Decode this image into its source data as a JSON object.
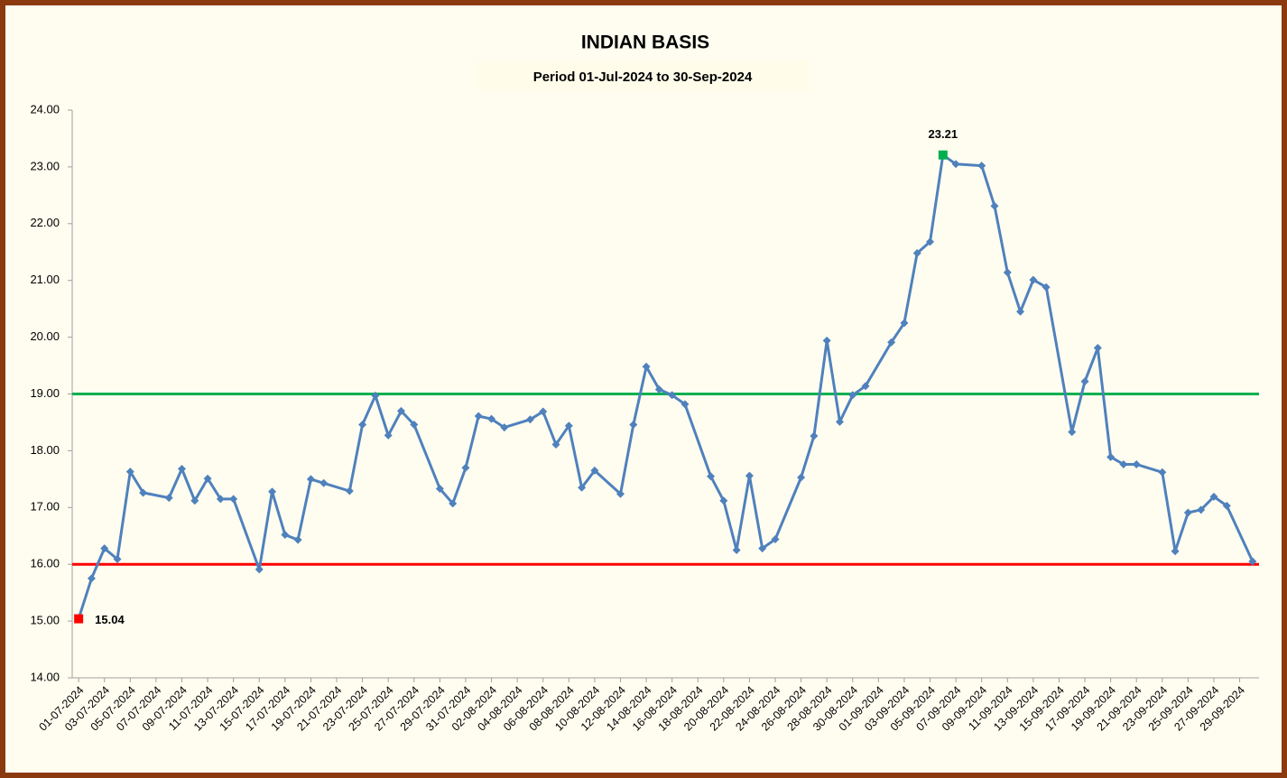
{
  "chart_data": {
    "type": "line",
    "title": "INDIAN BASIS",
    "subtitle": "Period 01-Jul-2024 to 30-Sep-2024",
    "x": [
      "01-07-2024",
      "02-07-2024",
      "03-07-2024",
      "04-07-2024",
      "05-07-2024",
      "06-07-2024",
      "08-07-2024",
      "09-07-2024",
      "10-07-2024",
      "11-07-2024",
      "12-07-2024",
      "13-07-2024",
      "15-07-2024",
      "16-07-2024",
      "17-07-2024",
      "18-07-2024",
      "19-07-2024",
      "20-07-2024",
      "22-07-2024",
      "23-07-2024",
      "24-07-2024",
      "25-07-2024",
      "26-07-2024",
      "27-07-2024",
      "29-07-2024",
      "30-07-2024",
      "31-07-2024",
      "01-08-2024",
      "02-08-2024",
      "03-08-2024",
      "05-08-2024",
      "06-08-2024",
      "07-08-2024",
      "08-08-2024",
      "09-08-2024",
      "10-08-2024",
      "12-08-2024",
      "13-08-2024",
      "14-08-2024",
      "15-08-2024",
      "16-08-2024",
      "17-08-2024",
      "19-08-2024",
      "20-08-2024",
      "21-08-2024",
      "22-08-2024",
      "23-08-2024",
      "24-08-2024",
      "26-08-2024",
      "27-08-2024",
      "28-08-2024",
      "29-08-2024",
      "30-08-2024",
      "31-08-2024",
      "02-09-2024",
      "03-09-2024",
      "04-09-2024",
      "05-09-2024",
      "06-09-2024",
      "07-09-2024",
      "09-09-2024",
      "10-09-2024",
      "11-09-2024",
      "12-09-2024",
      "13-09-2024",
      "14-09-2024",
      "16-09-2024",
      "17-09-2024",
      "18-09-2024",
      "19-09-2024",
      "20-09-2024",
      "21-09-2024",
      "23-09-2024",
      "24-09-2024",
      "25-09-2024",
      "26-09-2024",
      "27-09-2024",
      "28-09-2024",
      "30-09-2024"
    ],
    "values": [
      15.04,
      15.75,
      16.28,
      16.09,
      17.63,
      17.26,
      17.17,
      17.68,
      17.12,
      17.51,
      17.15,
      17.15,
      15.91,
      17.28,
      16.52,
      16.43,
      17.5,
      17.43,
      17.29,
      18.46,
      18.97,
      18.27,
      18.7,
      18.46,
      17.33,
      17.07,
      17.7,
      18.61,
      18.56,
      18.41,
      18.55,
      18.69,
      18.11,
      18.44,
      17.35,
      17.65,
      17.24,
      18.46,
      19.48,
      19.08,
      18.98,
      18.82,
      17.55,
      17.12,
      16.25,
      17.56,
      16.28,
      16.44,
      17.53,
      18.26,
      19.94,
      18.51,
      18.98,
      19.14,
      19.91,
      20.25,
      21.48,
      21.68,
      23.21,
      23.05,
      23.02,
      22.31,
      21.14,
      20.45,
      21.01,
      20.88,
      18.33,
      19.22,
      19.81,
      17.89,
      17.76,
      17.76,
      17.62,
      16.23,
      16.91,
      16.96,
      17.19,
      17.03,
      16.05
    ],
    "color": "#4f81bd",
    "xlim": [
      "01-07-2024",
      "30-09-2024"
    ],
    "xticks": [
      "01-07-2024",
      "03-07-2024",
      "05-07-2024",
      "07-07-2024",
      "09-07-2024",
      "11-07-2024",
      "13-07-2024",
      "15-07-2024",
      "17-07-2024",
      "19-07-2024",
      "21-07-2024",
      "23-07-2024",
      "25-07-2024",
      "27-07-2024",
      "29-07-2024",
      "31-07-2024",
      "02-08-2024",
      "04-08-2024",
      "06-08-2024",
      "08-08-2024",
      "10-08-2024",
      "12-08-2024",
      "14-08-2024",
      "16-08-2024",
      "18-08-2024",
      "20-08-2024",
      "22-08-2024",
      "24-08-2024",
      "26-08-2024",
      "28-08-2024",
      "30-08-2024",
      "01-09-2024",
      "03-09-2024",
      "05-09-2024",
      "07-09-2024",
      "09-09-2024",
      "11-09-2024",
      "13-09-2024",
      "15-09-2024",
      "17-09-2024",
      "19-09-2024",
      "21-09-2024",
      "23-09-2024",
      "25-09-2024",
      "27-09-2024",
      "29-09-2024"
    ],
    "ylim": [
      14,
      24
    ],
    "yticks": [
      {
        "value": 14,
        "label": "14.00"
      },
      {
        "value": 15,
        "label": "15.00"
      },
      {
        "value": 16,
        "label": "16.00"
      },
      {
        "value": 17,
        "label": "17.00"
      },
      {
        "value": 18,
        "label": "18.00"
      },
      {
        "value": 19,
        "label": "19.00"
      },
      {
        "value": 20,
        "label": "20.00"
      },
      {
        "value": 21,
        "label": "21.00"
      },
      {
        "value": 22,
        "label": "22.00"
      },
      {
        "value": 23,
        "label": "23.00"
      },
      {
        "value": 24,
        "label": "24.00"
      }
    ],
    "reference_lines": [
      {
        "value": 19,
        "color": "#00b050"
      },
      {
        "value": 16,
        "color": "#ff0000"
      }
    ],
    "max_marker": {
      "label": "23.21",
      "color": "#00b050"
    },
    "min_marker": {
      "label": "15.04",
      "color": "#ff0000"
    }
  }
}
